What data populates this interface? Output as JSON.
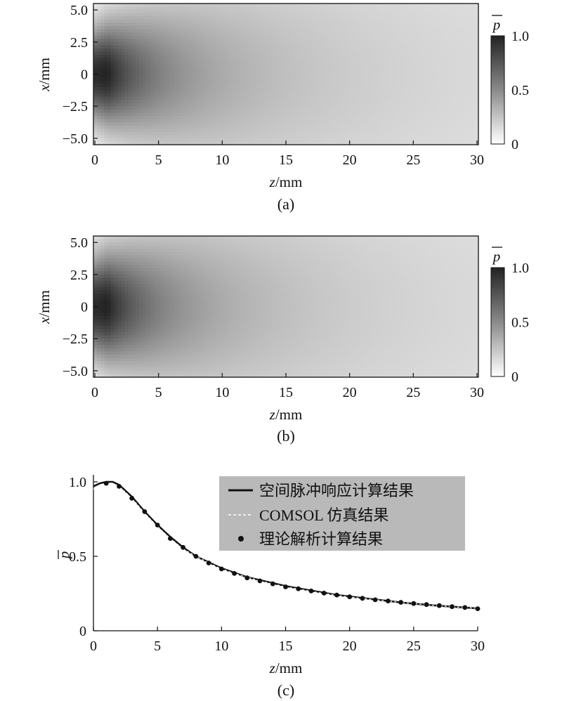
{
  "chart_data": [
    {
      "panel_label": "(a)",
      "type": "heatmap",
      "xlabel": {
        "var": "z",
        "unit": "/mm"
      },
      "ylabel": {
        "var": "x",
        "unit": "/mm"
      },
      "xlim": [
        0,
        30
      ],
      "ylim": [
        -5.5,
        5.5
      ],
      "xticks": [
        "0",
        "5",
        "10",
        "15",
        "20",
        "25",
        "30"
      ],
      "xtick_values": [
        0,
        5,
        10,
        15,
        20,
        25,
        30
      ],
      "yticks": [
        "5.0",
        "2.5",
        "0",
        "−2.5",
        "−5.0"
      ],
      "ytick_values": [
        5,
        2.5,
        0,
        -2.5,
        -5
      ],
      "colorbar": {
        "label": "p",
        "ticks": [
          "1.0",
          "0.5",
          "0"
        ],
        "tick_values": [
          1,
          0.5,
          0
        ],
        "colormap": [
          "#ffffff",
          "#222222"
        ]
      },
      "field": {
        "focus_z": 1.2,
        "on_axis_far_value": 0.15,
        "beam_width_mm": 2.6
      }
    },
    {
      "panel_label": "(b)",
      "type": "heatmap",
      "xlabel": {
        "var": "z",
        "unit": "/mm"
      },
      "ylabel": {
        "var": "x",
        "unit": "/mm"
      },
      "xlim": [
        0,
        30
      ],
      "ylim": [
        -5.5,
        5.5
      ],
      "xticks": [
        "0",
        "5",
        "10",
        "15",
        "20",
        "25",
        "30"
      ],
      "xtick_values": [
        0,
        5,
        10,
        15,
        20,
        25,
        30
      ],
      "yticks": [
        "5.0",
        "2.5",
        "0",
        "−2.5",
        "−5.0"
      ],
      "ytick_values": [
        5,
        2.5,
        0,
        -2.5,
        -5
      ],
      "colorbar": {
        "label": "p",
        "ticks": [
          "1.0",
          "0.5",
          "0"
        ],
        "tick_values": [
          1,
          0.5,
          0
        ],
        "colormap": [
          "#ffffff",
          "#222222"
        ]
      },
      "field": {
        "focus_z": 1.2,
        "on_axis_far_value": 0.15,
        "beam_width_mm": 2.8
      }
    },
    {
      "panel_label": "(c)",
      "type": "line",
      "xlabel": {
        "var": "z",
        "unit": "/mm"
      },
      "ylabel": {
        "var": "p",
        "unit": ""
      },
      "xlim": [
        0,
        30
      ],
      "ylim": [
        0,
        1.05
      ],
      "xticks": [
        "0",
        "5",
        "10",
        "15",
        "20",
        "25",
        "30"
      ],
      "xtick_values": [
        0,
        5,
        10,
        15,
        20,
        25,
        30
      ],
      "yticks": [
        "1.0",
        "0.5",
        "0"
      ],
      "ytick_values": [
        1,
        0.5,
        0
      ],
      "legend_position": "top-right",
      "series": [
        {
          "name": "空间脉冲响应计算结果",
          "style": "solid",
          "x": [
            0,
            0.5,
            1,
            1.5,
            2,
            3,
            4,
            5,
            6,
            7,
            8,
            9,
            10,
            11,
            12,
            13,
            14,
            15,
            16,
            17,
            18,
            19,
            20,
            21,
            22,
            23,
            24,
            25,
            26,
            27,
            28,
            29,
            30
          ],
          "y": [
            0.97,
            0.99,
            1.0,
            1.0,
            0.98,
            0.9,
            0.8,
            0.71,
            0.63,
            0.56,
            0.5,
            0.46,
            0.42,
            0.39,
            0.36,
            0.34,
            0.32,
            0.3,
            0.285,
            0.27,
            0.255,
            0.24,
            0.23,
            0.22,
            0.21,
            0.2,
            0.19,
            0.182,
            0.175,
            0.168,
            0.162,
            0.156,
            0.15
          ]
        },
        {
          "name": "COMSOL 仿真结果",
          "style": "dashed",
          "x": [
            0,
            0.5,
            1,
            1.5,
            2,
            3,
            4,
            5,
            6,
            7,
            8,
            9,
            10,
            11,
            12,
            13,
            14,
            15,
            16,
            17,
            18,
            19,
            20,
            21,
            22,
            23,
            24,
            25,
            26,
            27,
            28,
            29,
            30
          ],
          "y": [
            0.95,
            0.98,
            0.99,
            0.99,
            0.97,
            0.89,
            0.79,
            0.7,
            0.62,
            0.55,
            0.5,
            0.455,
            0.415,
            0.385,
            0.36,
            0.335,
            0.315,
            0.295,
            0.28,
            0.265,
            0.25,
            0.238,
            0.227,
            0.217,
            0.208,
            0.199,
            0.19,
            0.182,
            0.175,
            0.168,
            0.162,
            0.156,
            0.15
          ]
        },
        {
          "name": "理论解析计算结果",
          "style": "markers",
          "x": [
            1,
            2,
            3,
            4,
            5,
            6,
            7,
            8,
            9,
            10,
            11,
            12,
            13,
            14,
            15,
            16,
            17,
            18,
            19,
            20,
            21,
            22,
            23,
            24,
            25,
            26,
            27,
            28,
            29,
            30
          ],
          "y": [
            0.99,
            0.97,
            0.89,
            0.8,
            0.71,
            0.62,
            0.56,
            0.5,
            0.455,
            0.415,
            0.385,
            0.355,
            0.335,
            0.315,
            0.295,
            0.282,
            0.267,
            0.253,
            0.24,
            0.228,
            0.218,
            0.208,
            0.2,
            0.191,
            0.183,
            0.176,
            0.169,
            0.162,
            0.156,
            0.148
          ]
        }
      ]
    }
  ]
}
